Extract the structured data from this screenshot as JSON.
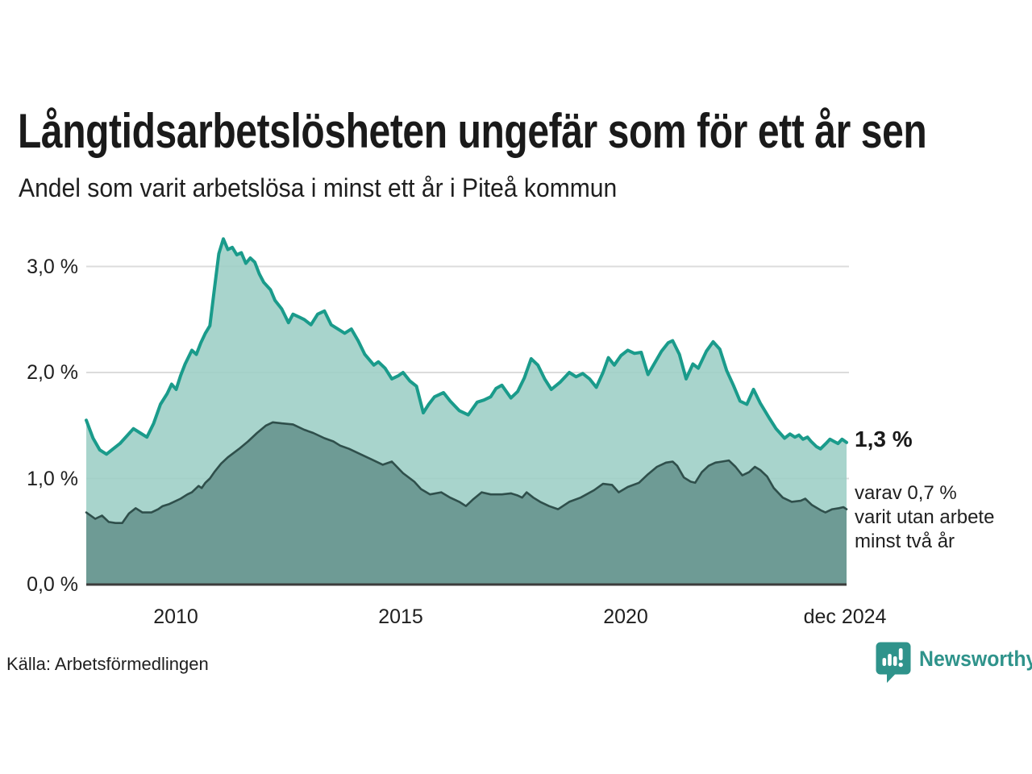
{
  "header": {
    "title": "Långtidsarbetslösheten ungefär som för ett år sen",
    "subtitle": "Andel som varit arbetslösa i minst ett år i Piteå kommun"
  },
  "chart": {
    "y_ticks": [
      "3,0 %",
      "2,0 %",
      "1,0 %",
      "0,0 %"
    ],
    "x_ticks": [
      "2010",
      "2015",
      "2020",
      "dec 2024"
    ],
    "annotation": {
      "value": "1,3 %",
      "detail_lines": [
        "varav 0,7 %",
        "varit utan arbete",
        "minst två år"
      ]
    }
  },
  "footer": {
    "source": "Källa: Arbetsförmedlingen",
    "brand": "Newsworthy"
  },
  "colors": {
    "accent_teal_line": "#1A9B8B",
    "light_area_fill": "#A8D4CC",
    "dark_series_line": "#2F4F4B",
    "dark_area_fill": "#6F9B94",
    "gridline": "#DCDCDC",
    "axis": "#3C3C3C",
    "text": "#1F1F1F",
    "brand": "#2F938B"
  },
  "chart_data": {
    "type": "area",
    "title": "Långtidsarbetslösheten ungefär som för ett år sen",
    "subtitle": "Andel som varit arbetslösa i minst ett år i Piteå kommun",
    "unit": "%",
    "x_range": [
      2008.0,
      2024.92
    ],
    "y_range": [
      0,
      3.5
    ],
    "gridline_values": [
      1,
      2,
      3
    ],
    "x_tick_positions": [
      2010,
      2015,
      2020,
      2024.92
    ],
    "end_labels": {
      "total": "1,3 %",
      "two_years": "0,7 %"
    },
    "series": [
      {
        "name": "Andel arbetslösa minst ett år (totalt)",
        "color": "#1A9B8B",
        "fill": "#9CCEC5",
        "fill_opacity": 0.88,
        "stroke_width": 4,
        "points": [
          [
            2008.0,
            1.55
          ],
          [
            2008.15,
            1.38
          ],
          [
            2008.3,
            1.27
          ],
          [
            2008.45,
            1.23
          ],
          [
            2008.6,
            1.28
          ],
          [
            2008.75,
            1.33
          ],
          [
            2008.9,
            1.4
          ],
          [
            2009.05,
            1.47
          ],
          [
            2009.2,
            1.43
          ],
          [
            2009.35,
            1.39
          ],
          [
            2009.5,
            1.52
          ],
          [
            2009.65,
            1.7
          ],
          [
            2009.8,
            1.8
          ],
          [
            2009.9,
            1.89
          ],
          [
            2010.0,
            1.84
          ],
          [
            2010.1,
            1.97
          ],
          [
            2010.2,
            2.08
          ],
          [
            2010.35,
            2.21
          ],
          [
            2010.45,
            2.17
          ],
          [
            2010.55,
            2.28
          ],
          [
            2010.65,
            2.37
          ],
          [
            2010.75,
            2.44
          ],
          [
            2010.85,
            2.78
          ],
          [
            2010.95,
            3.12
          ],
          [
            2011.05,
            3.26
          ],
          [
            2011.15,
            3.16
          ],
          [
            2011.25,
            3.18
          ],
          [
            2011.35,
            3.11
          ],
          [
            2011.45,
            3.13
          ],
          [
            2011.55,
            3.03
          ],
          [
            2011.65,
            3.08
          ],
          [
            2011.75,
            3.04
          ],
          [
            2011.85,
            2.93
          ],
          [
            2011.95,
            2.85
          ],
          [
            2012.1,
            2.78
          ],
          [
            2012.2,
            2.68
          ],
          [
            2012.35,
            2.6
          ],
          [
            2012.5,
            2.47
          ],
          [
            2012.6,
            2.55
          ],
          [
            2012.75,
            2.52
          ],
          [
            2012.85,
            2.5
          ],
          [
            2013.0,
            2.45
          ],
          [
            2013.15,
            2.55
          ],
          [
            2013.3,
            2.58
          ],
          [
            2013.45,
            2.45
          ],
          [
            2013.6,
            2.41
          ],
          [
            2013.75,
            2.37
          ],
          [
            2013.9,
            2.41
          ],
          [
            2014.05,
            2.3
          ],
          [
            2014.2,
            2.17
          ],
          [
            2014.4,
            2.07
          ],
          [
            2014.5,
            2.1
          ],
          [
            2014.65,
            2.04
          ],
          [
            2014.8,
            1.94
          ],
          [
            2014.95,
            1.97
          ],
          [
            2015.05,
            2.0
          ],
          [
            2015.2,
            1.92
          ],
          [
            2015.35,
            1.87
          ],
          [
            2015.5,
            1.62
          ],
          [
            2015.62,
            1.7
          ],
          [
            2015.75,
            1.77
          ],
          [
            2015.95,
            1.81
          ],
          [
            2016.1,
            1.73
          ],
          [
            2016.3,
            1.64
          ],
          [
            2016.5,
            1.6
          ],
          [
            2016.7,
            1.72
          ],
          [
            2016.85,
            1.74
          ],
          [
            2017.0,
            1.77
          ],
          [
            2017.12,
            1.85
          ],
          [
            2017.25,
            1.88
          ],
          [
            2017.45,
            1.76
          ],
          [
            2017.6,
            1.82
          ],
          [
            2017.75,
            1.95
          ],
          [
            2017.9,
            2.13
          ],
          [
            2018.05,
            2.07
          ],
          [
            2018.2,
            1.94
          ],
          [
            2018.35,
            1.84
          ],
          [
            2018.55,
            1.91
          ],
          [
            2018.75,
            2.0
          ],
          [
            2018.9,
            1.96
          ],
          [
            2019.05,
            1.99
          ],
          [
            2019.2,
            1.94
          ],
          [
            2019.35,
            1.86
          ],
          [
            2019.5,
            2.0
          ],
          [
            2019.62,
            2.14
          ],
          [
            2019.75,
            2.07
          ],
          [
            2019.9,
            2.16
          ],
          [
            2020.05,
            2.21
          ],
          [
            2020.2,
            2.18
          ],
          [
            2020.35,
            2.19
          ],
          [
            2020.5,
            1.98
          ],
          [
            2020.65,
            2.09
          ],
          [
            2020.8,
            2.2
          ],
          [
            2020.95,
            2.28
          ],
          [
            2021.05,
            2.3
          ],
          [
            2021.2,
            2.17
          ],
          [
            2021.35,
            1.94
          ],
          [
            2021.5,
            2.08
          ],
          [
            2021.62,
            2.04
          ],
          [
            2021.8,
            2.2
          ],
          [
            2021.95,
            2.29
          ],
          [
            2022.1,
            2.22
          ],
          [
            2022.25,
            2.02
          ],
          [
            2022.4,
            1.88
          ],
          [
            2022.55,
            1.73
          ],
          [
            2022.7,
            1.7
          ],
          [
            2022.85,
            1.84
          ],
          [
            2023.0,
            1.71
          ],
          [
            2023.2,
            1.57
          ],
          [
            2023.35,
            1.47
          ],
          [
            2023.54,
            1.38
          ],
          [
            2023.66,
            1.42
          ],
          [
            2023.77,
            1.39
          ],
          [
            2023.86,
            1.41
          ],
          [
            2023.95,
            1.37
          ],
          [
            2024.05,
            1.39
          ],
          [
            2024.13,
            1.35
          ],
          [
            2024.25,
            1.3
          ],
          [
            2024.34,
            1.28
          ],
          [
            2024.46,
            1.33
          ],
          [
            2024.55,
            1.37
          ],
          [
            2024.64,
            1.35
          ],
          [
            2024.73,
            1.33
          ],
          [
            2024.82,
            1.37
          ],
          [
            2024.92,
            1.34
          ]
        ]
      },
      {
        "name": "Varav utan arbete minst två år",
        "color": "#2F4F4B",
        "fill": "#699690",
        "fill_opacity": 0.92,
        "stroke_width": 2.6,
        "points": [
          [
            2008.0,
            0.68
          ],
          [
            2008.2,
            0.62
          ],
          [
            2008.35,
            0.65
          ],
          [
            2008.5,
            0.59
          ],
          [
            2008.65,
            0.58
          ],
          [
            2008.8,
            0.58
          ],
          [
            2008.95,
            0.67
          ],
          [
            2009.1,
            0.72
          ],
          [
            2009.25,
            0.68
          ],
          [
            2009.45,
            0.68
          ],
          [
            2009.6,
            0.71
          ],
          [
            2009.7,
            0.74
          ],
          [
            2009.85,
            0.76
          ],
          [
            2009.95,
            0.78
          ],
          [
            2010.1,
            0.81
          ],
          [
            2010.25,
            0.85
          ],
          [
            2010.35,
            0.87
          ],
          [
            2010.5,
            0.93
          ],
          [
            2010.57,
            0.91
          ],
          [
            2010.65,
            0.96
          ],
          [
            2010.75,
            1.0
          ],
          [
            2010.85,
            1.06
          ],
          [
            2011.0,
            1.14
          ],
          [
            2011.15,
            1.2
          ],
          [
            2011.4,
            1.28
          ],
          [
            2011.6,
            1.35
          ],
          [
            2011.8,
            1.43
          ],
          [
            2012.0,
            1.5
          ],
          [
            2012.15,
            1.53
          ],
          [
            2012.35,
            1.52
          ],
          [
            2012.6,
            1.51
          ],
          [
            2012.85,
            1.46
          ],
          [
            2013.05,
            1.43
          ],
          [
            2013.3,
            1.38
          ],
          [
            2013.5,
            1.35
          ],
          [
            2013.65,
            1.31
          ],
          [
            2013.85,
            1.28
          ],
          [
            2014.1,
            1.23
          ],
          [
            2014.35,
            1.18
          ],
          [
            2014.6,
            1.13
          ],
          [
            2014.8,
            1.16
          ],
          [
            2015.05,
            1.05
          ],
          [
            2015.3,
            0.97
          ],
          [
            2015.45,
            0.9
          ],
          [
            2015.65,
            0.85
          ],
          [
            2015.9,
            0.87
          ],
          [
            2016.1,
            0.82
          ],
          [
            2016.3,
            0.78
          ],
          [
            2016.45,
            0.74
          ],
          [
            2016.6,
            0.8
          ],
          [
            2016.8,
            0.87
          ],
          [
            2017.0,
            0.85
          ],
          [
            2017.25,
            0.85
          ],
          [
            2017.45,
            0.86
          ],
          [
            2017.6,
            0.84
          ],
          [
            2017.7,
            0.82
          ],
          [
            2017.8,
            0.87
          ],
          [
            2017.95,
            0.82
          ],
          [
            2018.1,
            0.78
          ],
          [
            2018.3,
            0.74
          ],
          [
            2018.5,
            0.71
          ],
          [
            2018.75,
            0.78
          ],
          [
            2019.0,
            0.82
          ],
          [
            2019.3,
            0.89
          ],
          [
            2019.5,
            0.95
          ],
          [
            2019.7,
            0.94
          ],
          [
            2019.85,
            0.87
          ],
          [
            2020.05,
            0.92
          ],
          [
            2020.3,
            0.96
          ],
          [
            2020.5,
            1.04
          ],
          [
            2020.7,
            1.11
          ],
          [
            2020.9,
            1.15
          ],
          [
            2021.05,
            1.16
          ],
          [
            2021.15,
            1.12
          ],
          [
            2021.3,
            1.01
          ],
          [
            2021.45,
            0.97
          ],
          [
            2021.55,
            0.96
          ],
          [
            2021.7,
            1.06
          ],
          [
            2021.85,
            1.12
          ],
          [
            2022.0,
            1.15
          ],
          [
            2022.15,
            1.16
          ],
          [
            2022.3,
            1.17
          ],
          [
            2022.45,
            1.11
          ],
          [
            2022.6,
            1.03
          ],
          [
            2022.75,
            1.06
          ],
          [
            2022.88,
            1.11
          ],
          [
            2023.0,
            1.08
          ],
          [
            2023.15,
            1.02
          ],
          [
            2023.3,
            0.91
          ],
          [
            2023.5,
            0.82
          ],
          [
            2023.7,
            0.78
          ],
          [
            2023.9,
            0.79
          ],
          [
            2024.0,
            0.81
          ],
          [
            2024.15,
            0.75
          ],
          [
            2024.35,
            0.7
          ],
          [
            2024.45,
            0.68
          ],
          [
            2024.6,
            0.71
          ],
          [
            2024.75,
            0.72
          ],
          [
            2024.85,
            0.73
          ],
          [
            2024.92,
            0.71
          ]
        ]
      }
    ]
  }
}
